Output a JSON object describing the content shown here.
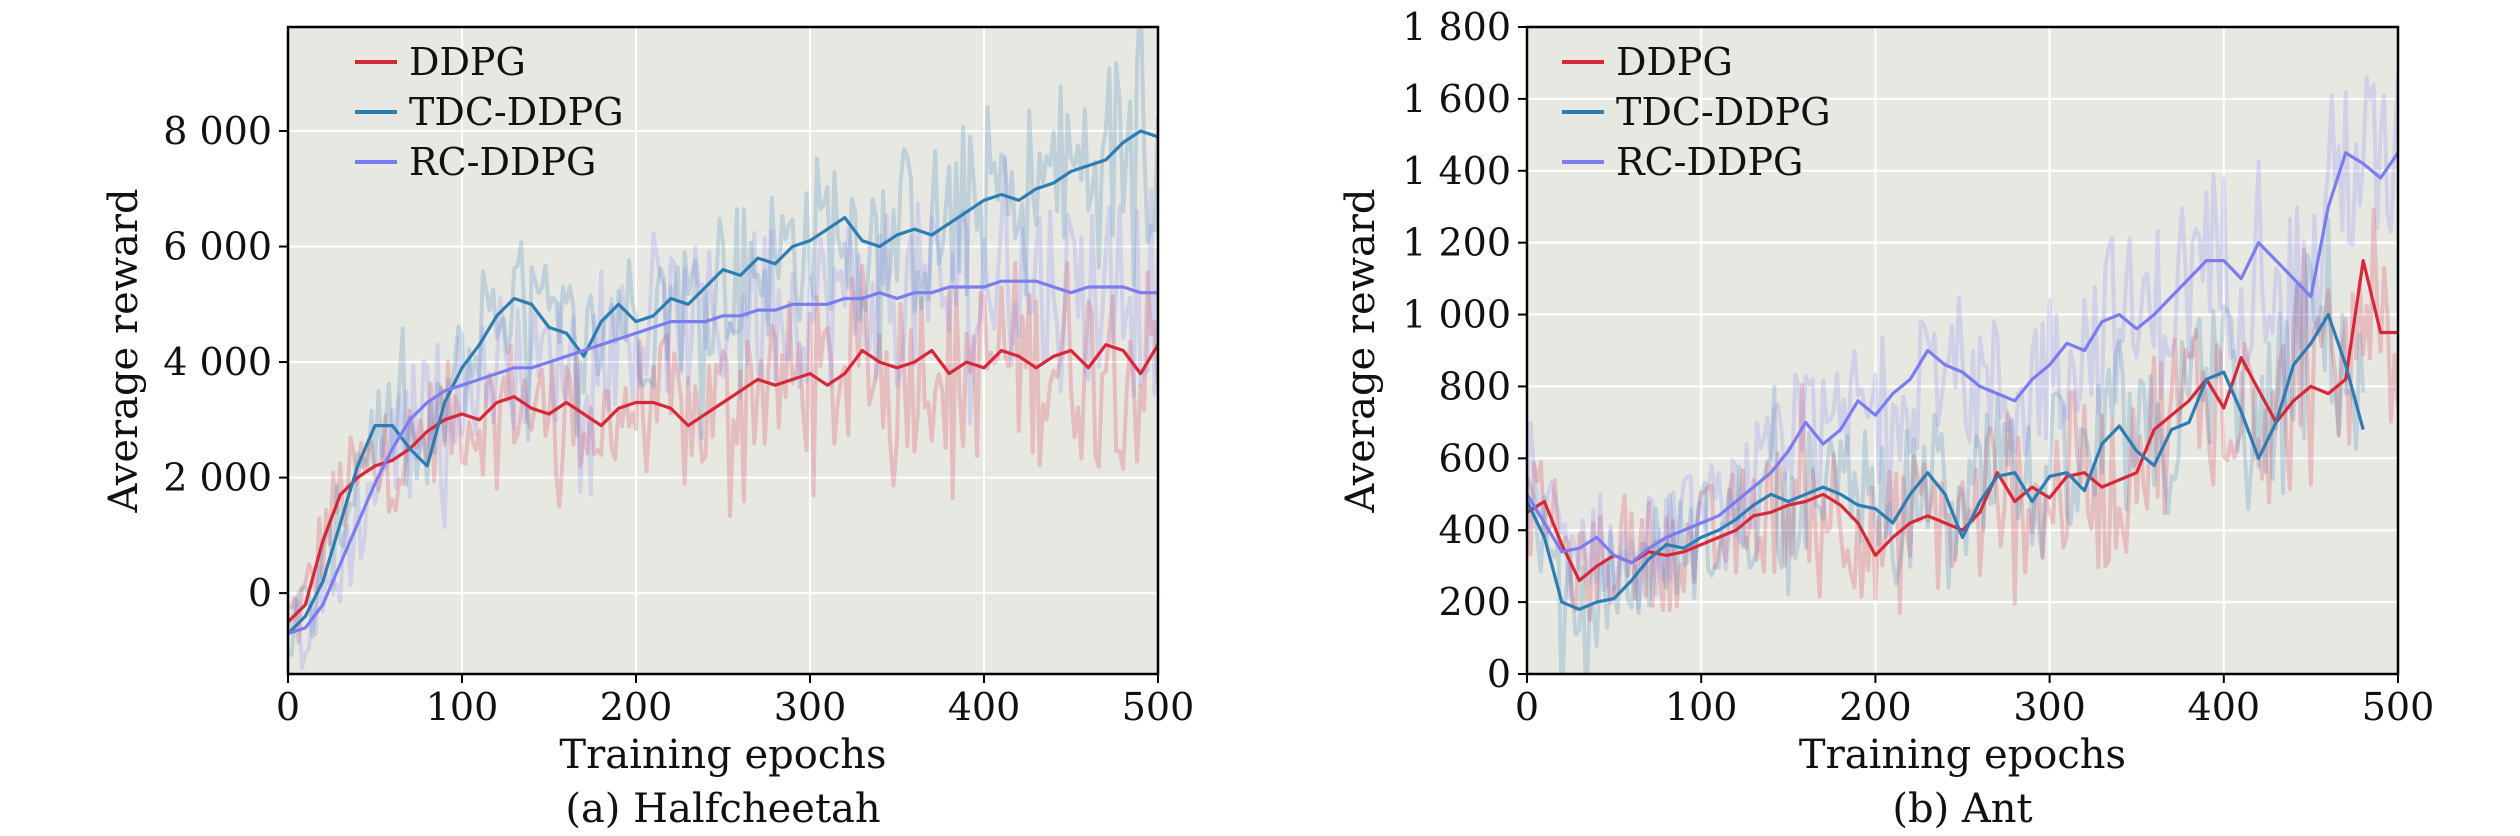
{
  "chart_data": [
    {
      "type": "line",
      "caption": "(a) Halfcheetah",
      "xlabel": "Training epochs",
      "ylabel": "Average reward",
      "xlim": [
        0,
        500
      ],
      "ylim": [
        -1400,
        9800
      ],
      "xticks": [
        0,
        100,
        200,
        300,
        400,
        500
      ],
      "xtick_labels": [
        "0",
        "100",
        "200",
        "300",
        "400",
        "500"
      ],
      "yticks": [
        0,
        2000,
        4000,
        6000,
        8000
      ],
      "ytick_labels": [
        "0",
        "2 000",
        "4 000",
        "6 000",
        "8 000"
      ],
      "grid": true,
      "legend_position": "top-left",
      "series": [
        {
          "name": "DDPG",
          "color": "#d62839",
          "x": [
            0,
            10,
            20,
            30,
            40,
            50,
            60,
            70,
            80,
            90,
            100,
            110,
            120,
            130,
            140,
            150,
            160,
            170,
            180,
            190,
            200,
            210,
            220,
            230,
            240,
            250,
            260,
            270,
            280,
            290,
            300,
            310,
            320,
            330,
            340,
            350,
            360,
            370,
            380,
            390,
            400,
            410,
            420,
            430,
            440,
            450,
            460,
            470,
            480,
            490,
            500
          ],
          "y": [
            -500,
            -200,
            900,
            1700,
            2000,
            2200,
            2300,
            2500,
            2800,
            3000,
            3100,
            3000,
            3300,
            3400,
            3200,
            3100,
            3300,
            3100,
            2900,
            3200,
            3300,
            3300,
            3200,
            2900,
            3100,
            3300,
            3500,
            3700,
            3600,
            3700,
            3800,
            3600,
            3800,
            4200,
            4000,
            3900,
            4000,
            4200,
            3800,
            4000,
            3900,
            4200,
            4100,
            3900,
            4100,
            4200,
            3900,
            4300,
            4200,
            3800,
            4300
          ]
        },
        {
          "name": "TDC-DDPG",
          "color": "#2d7db3",
          "x": [
            0,
            10,
            20,
            30,
            40,
            50,
            60,
            70,
            80,
            90,
            100,
            110,
            120,
            130,
            140,
            150,
            160,
            170,
            180,
            190,
            200,
            210,
            220,
            230,
            240,
            250,
            260,
            270,
            280,
            290,
            300,
            310,
            320,
            330,
            340,
            350,
            360,
            370,
            380,
            390,
            400,
            410,
            420,
            430,
            440,
            450,
            460,
            470,
            480,
            490,
            500
          ],
          "y": [
            -700,
            -400,
            200,
            1200,
            2200,
            2900,
            2900,
            2500,
            2200,
            3300,
            3900,
            4300,
            4800,
            5100,
            5000,
            4600,
            4500,
            4100,
            4700,
            5000,
            4700,
            4800,
            5100,
            5000,
            5300,
            5600,
            5500,
            5800,
            5700,
            6000,
            6100,
            6300,
            6500,
            6100,
            6000,
            6200,
            6300,
            6200,
            6400,
            6600,
            6800,
            6900,
            6800,
            7000,
            7100,
            7300,
            7400,
            7500,
            7800,
            8000,
            7900
          ]
        },
        {
          "name": "RC-DDPG",
          "color": "#7b7cf0",
          "x": [
            0,
            10,
            20,
            30,
            40,
            50,
            60,
            70,
            80,
            90,
            100,
            110,
            120,
            130,
            140,
            150,
            160,
            170,
            180,
            190,
            200,
            210,
            220,
            230,
            240,
            250,
            260,
            270,
            280,
            290,
            300,
            310,
            320,
            330,
            340,
            350,
            360,
            370,
            380,
            390,
            400,
            410,
            420,
            430,
            440,
            450,
            460,
            470,
            480,
            490,
            500
          ],
          "y": [
            -700,
            -600,
            -200,
            500,
            1200,
            1900,
            2500,
            3000,
            3300,
            3500,
            3600,
            3700,
            3800,
            3900,
            3900,
            4000,
            4100,
            4200,
            4300,
            4400,
            4500,
            4600,
            4700,
            4700,
            4700,
            4800,
            4800,
            4900,
            4900,
            5000,
            5000,
            5000,
            5100,
            5100,
            5200,
            5100,
            5200,
            5200,
            5300,
            5300,
            5300,
            5400,
            5400,
            5400,
            5300,
            5200,
            5300,
            5300,
            5300,
            5200,
            5200
          ]
        }
      ]
    },
    {
      "type": "line",
      "caption": "(b) Ant",
      "xlabel": "Training epochs",
      "ylabel": "Average reward",
      "xlim": [
        0,
        500
      ],
      "ylim": [
        0,
        1800
      ],
      "xticks": [
        0,
        100,
        200,
        300,
        400,
        500
      ],
      "xtick_labels": [
        "0",
        "100",
        "200",
        "300",
        "400",
        "500"
      ],
      "yticks": [
        0,
        200,
        400,
        600,
        800,
        1000,
        1200,
        1400,
        1600,
        1800
      ],
      "ytick_labels": [
        "0",
        "200",
        "400",
        "600",
        "800",
        "1 000",
        "1 200",
        "1 400",
        "1 600",
        "1 800"
      ],
      "grid": true,
      "legend_position": "top-left",
      "series": [
        {
          "name": "DDPG",
          "color": "#d62839",
          "x": [
            0,
            10,
            20,
            30,
            40,
            50,
            60,
            70,
            80,
            90,
            100,
            110,
            120,
            130,
            140,
            150,
            160,
            170,
            180,
            190,
            200,
            210,
            220,
            230,
            240,
            250,
            260,
            270,
            280,
            290,
            300,
            310,
            320,
            330,
            340,
            350,
            360,
            370,
            380,
            390,
            400,
            410,
            420,
            430,
            440,
            450,
            460,
            470,
            480,
            490,
            500
          ],
          "y": [
            450,
            480,
            360,
            260,
            300,
            330,
            310,
            340,
            330,
            340,
            360,
            380,
            400,
            440,
            450,
            470,
            480,
            500,
            470,
            420,
            330,
            380,
            420,
            440,
            420,
            400,
            450,
            560,
            480,
            520,
            490,
            550,
            560,
            520,
            540,
            560,
            680,
            720,
            760,
            820,
            740,
            880,
            790,
            700,
            760,
            800,
            780,
            820,
            1150,
            950,
            950
          ]
        },
        {
          "name": "TDC-DDPG",
          "color": "#2d7db3",
          "x": [
            0,
            10,
            20,
            30,
            40,
            50,
            60,
            70,
            80,
            90,
            100,
            110,
            120,
            130,
            140,
            150,
            160,
            170,
            180,
            190,
            200,
            210,
            220,
            230,
            240,
            250,
            260,
            270,
            280,
            290,
            300,
            310,
            320,
            330,
            340,
            350,
            360,
            370,
            380,
            390,
            400,
            410,
            420,
            430,
            440,
            450,
            460,
            470,
            480
          ],
          "y": [
            480,
            380,
            200,
            180,
            200,
            210,
            260,
            320,
            360,
            350,
            380,
            400,
            430,
            470,
            500,
            480,
            500,
            520,
            500,
            470,
            460,
            420,
            500,
            560,
            500,
            380,
            480,
            550,
            560,
            480,
            550,
            560,
            510,
            640,
            690,
            620,
            580,
            680,
            700,
            820,
            840,
            730,
            600,
            700,
            860,
            920,
            1000,
            860,
            680
          ]
        },
        {
          "name": "RC-DDPG",
          "color": "#7b7cf0",
          "x": [
            0,
            10,
            20,
            30,
            40,
            50,
            60,
            70,
            80,
            90,
            100,
            110,
            120,
            130,
            140,
            150,
            160,
            170,
            180,
            190,
            200,
            210,
            220,
            230,
            240,
            250,
            260,
            270,
            280,
            290,
            300,
            310,
            320,
            330,
            340,
            350,
            360,
            370,
            380,
            390,
            400,
            410,
            420,
            430,
            440,
            450,
            460,
            470,
            480,
            490,
            500
          ],
          "y": [
            500,
            420,
            340,
            350,
            380,
            330,
            310,
            350,
            380,
            400,
            420,
            440,
            480,
            520,
            560,
            620,
            700,
            640,
            680,
            760,
            720,
            780,
            820,
            900,
            860,
            840,
            800,
            780,
            760,
            820,
            860,
            920,
            900,
            980,
            1000,
            960,
            1000,
            1050,
            1100,
            1150,
            1150,
            1100,
            1200,
            1150,
            1100,
            1050,
            1300,
            1450,
            1420,
            1380,
            1450
          ]
        }
      ]
    }
  ]
}
